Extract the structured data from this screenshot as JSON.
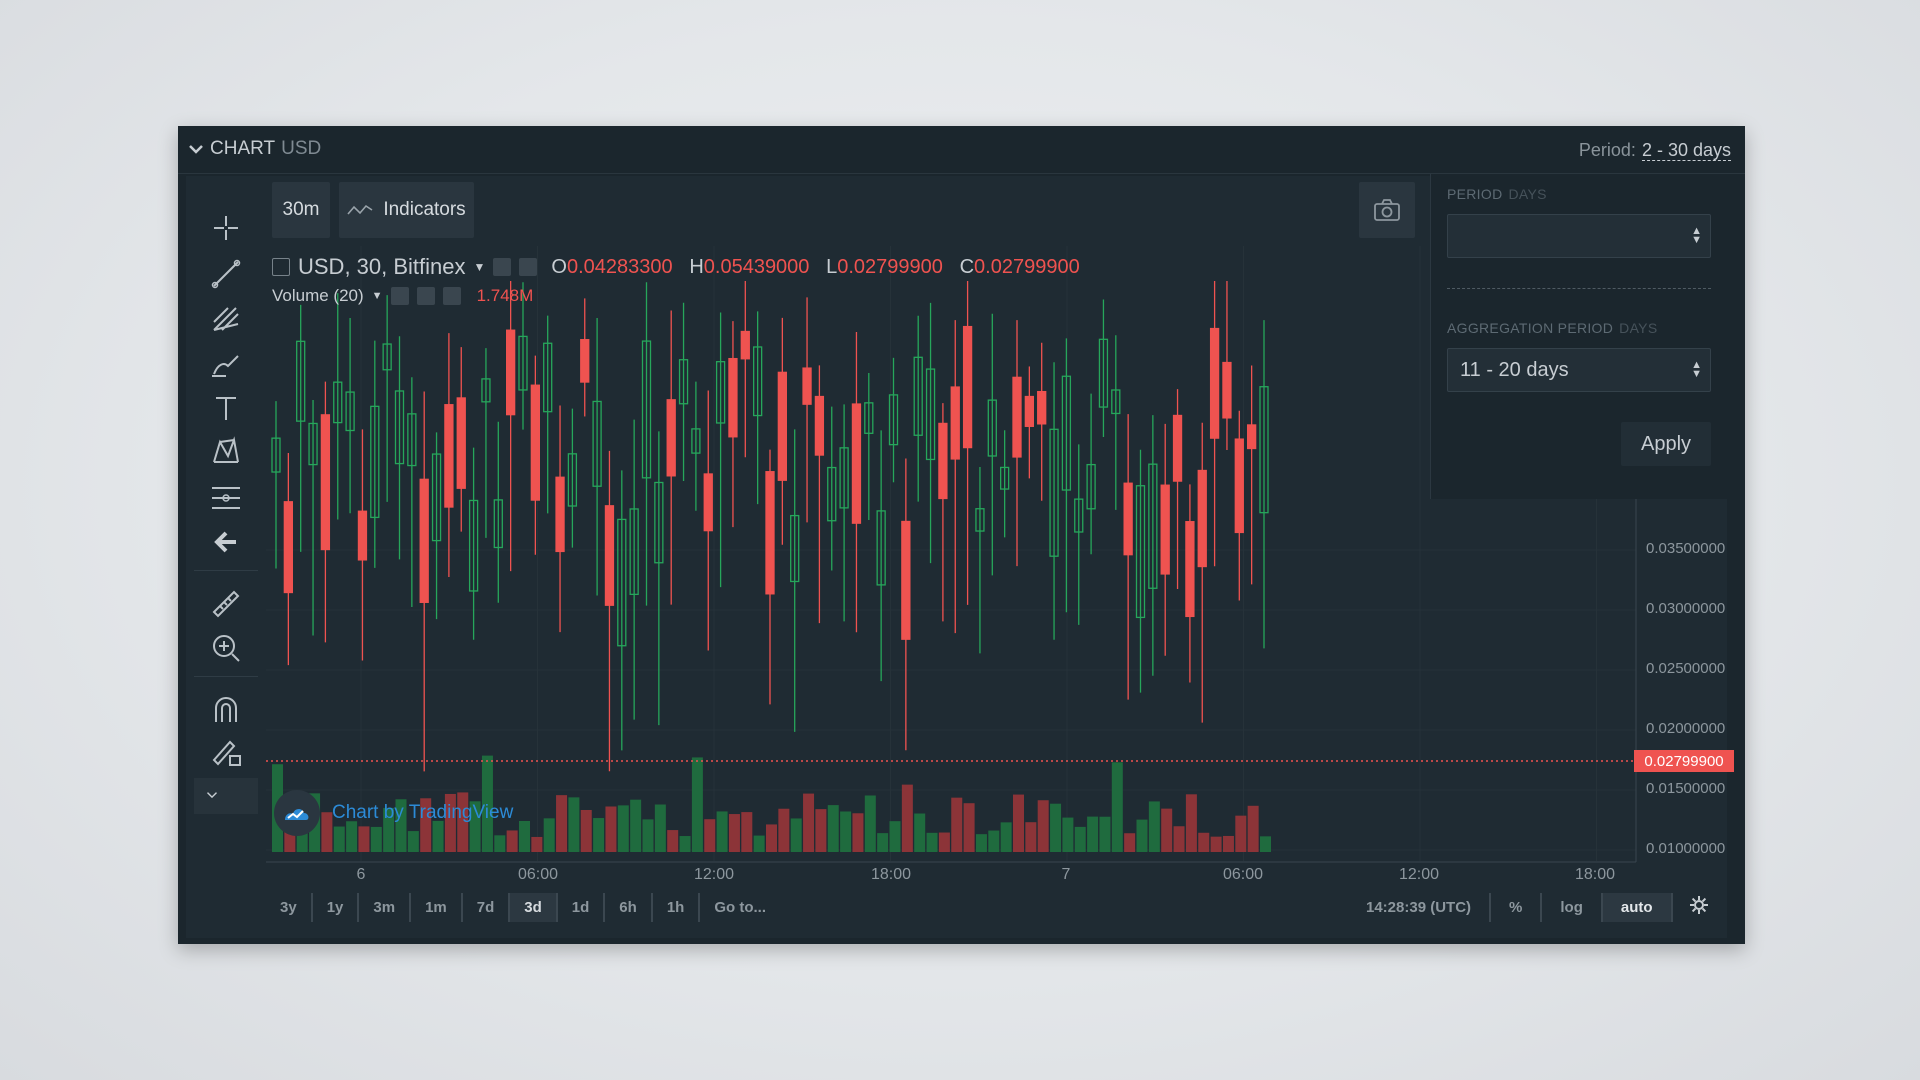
{
  "header": {
    "title": "CHART",
    "currency": "USD",
    "period_label": "Period:",
    "period_value": "2 - 30 days"
  },
  "toolbar": {
    "interval": "30m",
    "indicators_label": "Indicators"
  },
  "legend": {
    "symbol": "USD, 30, Bitfinex",
    "o_label": "O",
    "o_value": "0.04283300",
    "h_label": "H",
    "h_value": "0.05439000",
    "l_label": "L",
    "l_value": "0.02799900",
    "c_label": "C",
    "c_value": "0.02799900",
    "volume_label": "Volume (20)",
    "volume_value": "1.748M"
  },
  "price_tag": "0.02799900",
  "y_axis_ticks": [
    "0.03500000",
    "0.03000000",
    "0.02500000",
    "0.02000000",
    "0.01500000",
    "0.01000000"
  ],
  "x_axis_ticks": [
    "6",
    "06:00",
    "12:00",
    "18:00",
    "7",
    "06:00",
    "12:00",
    "18:00"
  ],
  "watermark": "Chart by TradingView",
  "ranges": [
    "3y",
    "1y",
    "3m",
    "1m",
    "7d",
    "3d",
    "1d",
    "6h",
    "1h",
    "Go to..."
  ],
  "active_range": "3d",
  "bottom_right": {
    "time": "14:28:39 (UTC)",
    "percent": "%",
    "log": "log",
    "auto": "auto"
  },
  "popup": {
    "period_label": "PERIOD",
    "period_unit": "DAYS",
    "period_value": "",
    "aggregation_label": "AGGREGATION PERIOD",
    "aggregation_unit": "DAYS",
    "aggregation_value": "11 - 20 days",
    "apply_label": "Apply"
  },
  "colors": {
    "up": "#26a65b",
    "down": "#ef5350",
    "background": "#1f2b33",
    "accent": "#2c8bd7"
  },
  "icons": [
    "crosshair-icon",
    "trend-line-icon",
    "pitchfork-icon",
    "brush-icon",
    "text-icon",
    "pattern-icon",
    "fib-icon",
    "back-arrow-icon",
    "ruler-icon",
    "zoom-in-icon",
    "magnet-icon",
    "lock-drawing-icon",
    "collapse-icon",
    "camera-icon",
    "settings-icon"
  ]
}
